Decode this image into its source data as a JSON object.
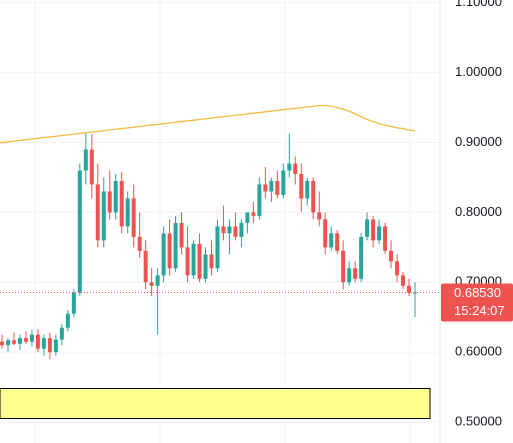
{
  "chart_data": {
    "type": "candlestick",
    "open": [
      0.615,
      0.61,
      0.617,
      0.612,
      0.62,
      0.615,
      0.625,
      0.605,
      0.62,
      0.6,
      0.618,
      0.635,
      0.655,
      0.685,
      0.86,
      0.89,
      0.84,
      0.76,
      0.83,
      0.8,
      0.845,
      0.78,
      0.82,
      0.765,
      0.745,
      0.7,
      0.695,
      0.71,
      0.77,
      0.72,
      0.785,
      0.75,
      0.71,
      0.755,
      0.705,
      0.74,
      0.72,
      0.78,
      0.77,
      0.78,
      0.765,
      0.785,
      0.8,
      0.795,
      0.84,
      0.83,
      0.845,
      0.825,
      0.86,
      0.87,
      0.855,
      0.82,
      0.845,
      0.8,
      0.79,
      0.75,
      0.77,
      0.745,
      0.7,
      0.72,
      0.705,
      0.765,
      0.79,
      0.76,
      0.78,
      0.745,
      0.73,
      0.71,
      0.695,
      0.685
    ],
    "high": [
      0.625,
      0.62,
      0.628,
      0.625,
      0.63,
      0.632,
      0.633,
      0.625,
      0.628,
      0.625,
      0.64,
      0.66,
      0.69,
      0.87,
      0.915,
      0.912,
      0.87,
      0.85,
      0.86,
      0.855,
      0.858,
      0.83,
      0.84,
      0.8,
      0.76,
      0.72,
      0.72,
      0.78,
      0.79,
      0.795,
      0.8,
      0.78,
      0.76,
      0.77,
      0.75,
      0.76,
      0.79,
      0.81,
      0.79,
      0.8,
      0.79,
      0.8,
      0.815,
      0.85,
      0.865,
      0.85,
      0.86,
      0.87,
      0.913,
      0.88,
      0.87,
      0.85,
      0.85,
      0.83,
      0.8,
      0.78,
      0.775,
      0.76,
      0.73,
      0.73,
      0.77,
      0.8,
      0.795,
      0.79,
      0.785,
      0.76,
      0.74,
      0.715,
      0.705,
      0.7
    ],
    "low": [
      0.605,
      0.6,
      0.61,
      0.603,
      0.612,
      0.608,
      0.6,
      0.595,
      0.59,
      0.595,
      0.61,
      0.63,
      0.65,
      0.68,
      0.84,
      0.82,
      0.75,
      0.75,
      0.79,
      0.79,
      0.77,
      0.77,
      0.75,
      0.735,
      0.69,
      0.68,
      0.625,
      0.7,
      0.71,
      0.715,
      0.74,
      0.7,
      0.705,
      0.7,
      0.7,
      0.71,
      0.715,
      0.76,
      0.74,
      0.76,
      0.75,
      0.77,
      0.785,
      0.79,
      0.82,
      0.815,
      0.82,
      0.82,
      0.85,
      0.84,
      0.8,
      0.81,
      0.79,
      0.78,
      0.74,
      0.745,
      0.74,
      0.69,
      0.695,
      0.7,
      0.7,
      0.76,
      0.75,
      0.755,
      0.74,
      0.72,
      0.7,
      0.69,
      0.68,
      0.65
    ],
    "close": [
      0.61,
      0.617,
      0.612,
      0.62,
      0.615,
      0.625,
      0.605,
      0.62,
      0.6,
      0.618,
      0.635,
      0.655,
      0.685,
      0.86,
      0.89,
      0.84,
      0.76,
      0.83,
      0.8,
      0.845,
      0.78,
      0.82,
      0.765,
      0.745,
      0.7,
      0.695,
      0.71,
      0.77,
      0.72,
      0.785,
      0.75,
      0.71,
      0.755,
      0.705,
      0.74,
      0.72,
      0.78,
      0.77,
      0.78,
      0.765,
      0.785,
      0.8,
      0.795,
      0.84,
      0.83,
      0.845,
      0.825,
      0.86,
      0.87,
      0.855,
      0.82,
      0.845,
      0.8,
      0.79,
      0.75,
      0.77,
      0.745,
      0.7,
      0.72,
      0.705,
      0.765,
      0.79,
      0.76,
      0.78,
      0.745,
      0.73,
      0.71,
      0.695,
      0.685,
      0.6853
    ],
    "moving_average": [
      0.9,
      0.901,
      0.902,
      0.903,
      0.904,
      0.905,
      0.906,
      0.907,
      0.908,
      0.909,
      0.91,
      0.911,
      0.912,
      0.913,
      0.914,
      0.915,
      0.916,
      0.917,
      0.918,
      0.919,
      0.92,
      0.921,
      0.922,
      0.923,
      0.924,
      0.925,
      0.926,
      0.927,
      0.928,
      0.929,
      0.93,
      0.931,
      0.932,
      0.933,
      0.934,
      0.935,
      0.936,
      0.937,
      0.938,
      0.939,
      0.94,
      0.941,
      0.942,
      0.943,
      0.944,
      0.945,
      0.946,
      0.947,
      0.948,
      0.949,
      0.95,
      0.951,
      0.952,
      0.953,
      0.953,
      0.952,
      0.95,
      0.948,
      0.945,
      0.941,
      0.937,
      0.933,
      0.93,
      0.927,
      0.925,
      0.923,
      0.921,
      0.92,
      0.918,
      0.917
    ],
    "up_color": "#26a69a",
    "down_color": "#ef5350",
    "ma_color": "#f5b940",
    "zone": [
      0.505,
      0.548
    ],
    "zone_color": "#ffff8d",
    "last_price_label": "0.68530",
    "countdown": "15:24:07",
    "ylim": [
      0.47,
      1.104
    ],
    "yticks": [
      {
        "value": 0.5,
        "label": "0.50000"
      },
      {
        "value": 0.6,
        "label": "0.60000"
      },
      {
        "value": 0.7,
        "label": "0.70000"
      },
      {
        "value": 0.8,
        "label": "0.80000"
      },
      {
        "value": 0.9,
        "label": "0.90000"
      },
      {
        "value": 1.0,
        "label": "1.00000"
      },
      {
        "value": 1.1,
        "label": "1.10000"
      }
    ],
    "grid": true
  }
}
